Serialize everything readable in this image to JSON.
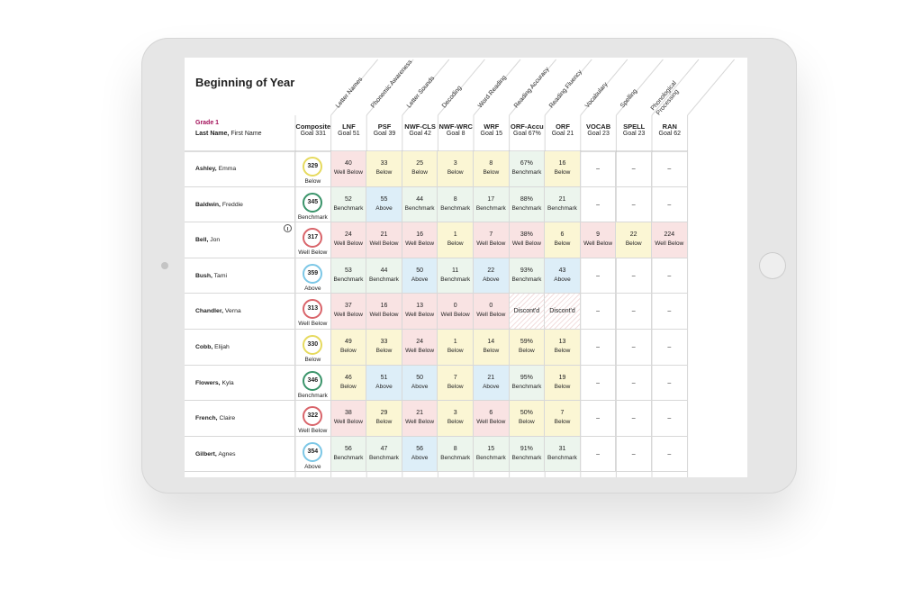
{
  "header": {
    "title": "Beginning of Year",
    "grade": "Grade 1",
    "name_label_bold": "Last Name,",
    "name_label": "First Name"
  },
  "domains": [
    "Letter Names",
    "Phonemic Awareness",
    "Letter Sounds",
    "Decoding",
    "Word Reading",
    "Reading Accuracy",
    "Reading Fluency",
    "Vocabulary",
    "Spelling",
    "Phonological Processing"
  ],
  "columns": [
    {
      "name": "Composite",
      "goal": "Goal 331"
    },
    {
      "name": "LNF",
      "goal": "Goal 51"
    },
    {
      "name": "PSF",
      "goal": "Goal 39"
    },
    {
      "name": "NWF-CLS",
      "goal": "Goal 42"
    },
    {
      "name": "NWF-WRC",
      "goal": "Goal 8"
    },
    {
      "name": "WRF",
      "goal": "Goal 15"
    },
    {
      "name": "ORF-Accu",
      "goal": "Goal 67%"
    },
    {
      "name": "ORF",
      "goal": "Goal 21"
    },
    {
      "name": "VOCAB",
      "goal": "Goal 23"
    },
    {
      "name": "SPELL",
      "goal": "Goal 23"
    },
    {
      "name": "RAN",
      "goal": "Goal 62"
    }
  ],
  "rows": [
    {
      "last": "Ashley,",
      "first": "Emma",
      "composite": {
        "v": "329",
        "l": "Below",
        "ring": "#e6da5e"
      },
      "cells": [
        {
          "v": "40",
          "l": "Well Below",
          "c": "#f9e3e3"
        },
        {
          "v": "33",
          "l": "Below",
          "c": "#fbf6d4"
        },
        {
          "v": "25",
          "l": "Below",
          "c": "#fbf6d4"
        },
        {
          "v": "3",
          "l": "Below",
          "c": "#fbf6d4"
        },
        {
          "v": "8",
          "l": "Below",
          "c": "#fbf6d4"
        },
        {
          "v": "67%",
          "l": "Benchmark",
          "c": "#ecf5ed"
        },
        {
          "v": "16",
          "l": "Below",
          "c": "#fbf6d4"
        },
        {
          "v": "–"
        },
        {
          "v": "–"
        },
        {
          "v": "–"
        }
      ]
    },
    {
      "last": "Baldwin,",
      "first": "Freddie",
      "composite": {
        "v": "345",
        "l": "Benchmark",
        "ring": "#3a946a"
      },
      "cells": [
        {
          "v": "52",
          "l": "Benchmark",
          "c": "#ecf5ed"
        },
        {
          "v": "55",
          "l": "Above",
          "c": "#ddeef8"
        },
        {
          "v": "44",
          "l": "Benchmark",
          "c": "#ecf5ed"
        },
        {
          "v": "8",
          "l": "Benchmark",
          "c": "#ecf5ed"
        },
        {
          "v": "17",
          "l": "Benchmark",
          "c": "#ecf5ed"
        },
        {
          "v": "88%",
          "l": "Benchmark",
          "c": "#ecf5ed"
        },
        {
          "v": "21",
          "l": "Benchmark",
          "c": "#ecf5ed"
        },
        {
          "v": "–"
        },
        {
          "v": "–"
        },
        {
          "v": "–"
        }
      ]
    },
    {
      "last": "Bell,",
      "first": "Jon",
      "composite": {
        "v": "317",
        "l": "Well Below",
        "ring": "#d9646a"
      },
      "cells": [
        {
          "v": "24",
          "l": "Well Below",
          "c": "#f9e3e3"
        },
        {
          "v": "21",
          "l": "Well Below",
          "c": "#f9e3e3"
        },
        {
          "v": "16",
          "l": "Well Below",
          "c": "#f9e3e3"
        },
        {
          "v": "1",
          "l": "Below",
          "c": "#fbf6d4"
        },
        {
          "v": "7",
          "l": "Well Below",
          "c": "#f9e3e3"
        },
        {
          "v": "38%",
          "l": "Well Below",
          "c": "#f9e3e3"
        },
        {
          "v": "6",
          "l": "Below",
          "c": "#fbf6d4"
        },
        {
          "v": "9",
          "l": "Well Below",
          "c": "#f9e3e3"
        },
        {
          "v": "22",
          "l": "Below",
          "c": "#fbf6d4"
        },
        {
          "v": "224",
          "l": "Well Below",
          "c": "#f9e3e3"
        }
      ]
    },
    {
      "last": "Bush,",
      "first": "Tami",
      "composite": {
        "v": "359",
        "l": "Above",
        "ring": "#7cc7e6"
      },
      "cells": [
        {
          "v": "53",
          "l": "Benchmark",
          "c": "#ecf5ed"
        },
        {
          "v": "44",
          "l": "Benchmark",
          "c": "#ecf5ed"
        },
        {
          "v": "50",
          "l": "Above",
          "c": "#ddeef8"
        },
        {
          "v": "11",
          "l": "Benchmark",
          "c": "#ecf5ed"
        },
        {
          "v": "22",
          "l": "Above",
          "c": "#ddeef8"
        },
        {
          "v": "93%",
          "l": "Benchmark",
          "c": "#ecf5ed"
        },
        {
          "v": "43",
          "l": "Above",
          "c": "#ddeef8"
        },
        {
          "v": "–"
        },
        {
          "v": "–"
        },
        {
          "v": "–"
        }
      ]
    },
    {
      "last": "Chandler,",
      "first": "Verna",
      "composite": {
        "v": "313",
        "l": "Well Below",
        "ring": "#d9646a"
      },
      "cells": [
        {
          "v": "37",
          "l": "Well Below",
          "c": "#f9e3e3"
        },
        {
          "v": "16",
          "l": "Well Below",
          "c": "#f9e3e3"
        },
        {
          "v": "13",
          "l": "Well Below",
          "c": "#f9e3e3"
        },
        {
          "v": "0",
          "l": "Well Below",
          "c": "#f9e3e3"
        },
        {
          "v": "0",
          "l": "Well Below",
          "c": "#f9e3e3"
        },
        {
          "v": "Discont'd",
          "hatched": true
        },
        {
          "v": "Discont'd",
          "hatched": true
        },
        {
          "v": "–"
        },
        {
          "v": "–"
        },
        {
          "v": "–"
        }
      ]
    },
    {
      "last": "Cobb,",
      "first": "Elijah",
      "composite": {
        "v": "330",
        "l": "Below",
        "ring": "#e6da5e"
      },
      "cells": [
        {
          "v": "49",
          "l": "Below",
          "c": "#fbf6d4"
        },
        {
          "v": "33",
          "l": "Below",
          "c": "#fbf6d4"
        },
        {
          "v": "24",
          "l": "Well Below",
          "c": "#f9e3e3"
        },
        {
          "v": "1",
          "l": "Below",
          "c": "#fbf6d4"
        },
        {
          "v": "14",
          "l": "Below",
          "c": "#fbf6d4"
        },
        {
          "v": "59%",
          "l": "Below",
          "c": "#fbf6d4"
        },
        {
          "v": "13",
          "l": "Below",
          "c": "#fbf6d4"
        },
        {
          "v": "–"
        },
        {
          "v": "–"
        },
        {
          "v": "–"
        }
      ]
    },
    {
      "last": "Flowers,",
      "first": "Kyla",
      "composite": {
        "v": "346",
        "l": "Benchmark",
        "ring": "#3a946a"
      },
      "cells": [
        {
          "v": "46",
          "l": "Below",
          "c": "#fbf6d4"
        },
        {
          "v": "51",
          "l": "Above",
          "c": "#ddeef8"
        },
        {
          "v": "50",
          "l": "Above",
          "c": "#ddeef8"
        },
        {
          "v": "7",
          "l": "Below",
          "c": "#fbf6d4"
        },
        {
          "v": "21",
          "l": "Above",
          "c": "#ddeef8"
        },
        {
          "v": "95%",
          "l": "Benchmark",
          "c": "#ecf5ed"
        },
        {
          "v": "19",
          "l": "Below",
          "c": "#fbf6d4"
        },
        {
          "v": "–"
        },
        {
          "v": "–"
        },
        {
          "v": "–"
        }
      ]
    },
    {
      "last": "French,",
      "first": "Claire",
      "composite": {
        "v": "322",
        "l": "Well Below",
        "ring": "#d9646a"
      },
      "cells": [
        {
          "v": "38",
          "l": "Well Below",
          "c": "#f9e3e3"
        },
        {
          "v": "29",
          "l": "Below",
          "c": "#fbf6d4"
        },
        {
          "v": "21",
          "l": "Well Below",
          "c": "#f9e3e3"
        },
        {
          "v": "3",
          "l": "Below",
          "c": "#fbf6d4"
        },
        {
          "v": "6",
          "l": "Well Below",
          "c": "#f9e3e3"
        },
        {
          "v": "50%",
          "l": "Below",
          "c": "#fbf6d4"
        },
        {
          "v": "7",
          "l": "Below",
          "c": "#fbf6d4"
        },
        {
          "v": "–"
        },
        {
          "v": "–"
        },
        {
          "v": "–"
        }
      ]
    },
    {
      "last": "Gilbert,",
      "first": "Agnes",
      "composite": {
        "v": "354",
        "l": "Above",
        "ring": "#7cc7e6"
      },
      "cells": [
        {
          "v": "56",
          "l": "Benchmark",
          "c": "#ecf5ed"
        },
        {
          "v": "47",
          "l": "Benchmark",
          "c": "#ecf5ed"
        },
        {
          "v": "56",
          "l": "Above",
          "c": "#ddeef8"
        },
        {
          "v": "8",
          "l": "Benchmark",
          "c": "#ecf5ed"
        },
        {
          "v": "15",
          "l": "Benchmark",
          "c": "#ecf5ed"
        },
        {
          "v": "91%",
          "l": "Benchmark",
          "c": "#ecf5ed"
        },
        {
          "v": "31",
          "l": "Benchmark",
          "c": "#ecf5ed"
        },
        {
          "v": "–"
        },
        {
          "v": "–"
        },
        {
          "v": "–"
        }
      ]
    }
  ]
}
